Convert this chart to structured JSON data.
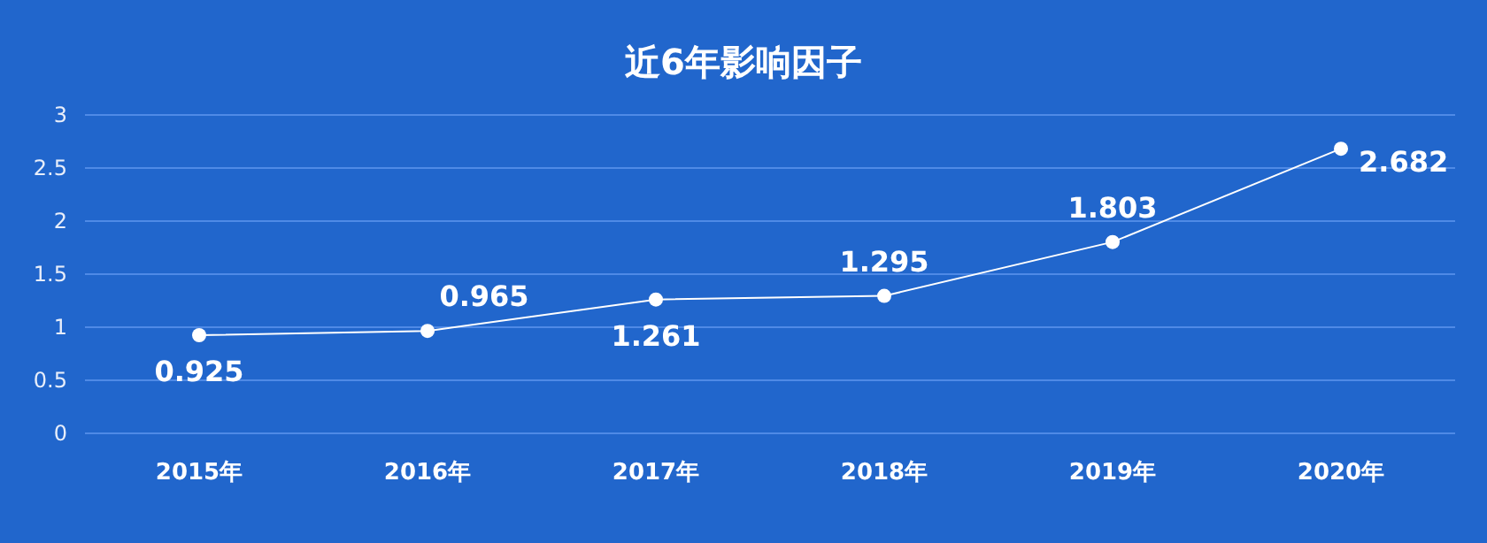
{
  "chart_data": {
    "type": "line",
    "title": "近6年影响因子",
    "categories": [
      "2015年",
      "2016年",
      "2017年",
      "2018年",
      "2019年",
      "2020年"
    ],
    "series": [
      {
        "color": "#ffffff",
        "values": [
          0.925,
          0.965,
          1.261,
          1.295,
          1.803,
          2.682
        ]
      }
    ],
    "ylim": [
      0,
      3
    ],
    "yticks": [
      0,
      0.5,
      1,
      1.5,
      2,
      2.5,
      3
    ],
    "grid": "y",
    "marker": "circle",
    "data_labels": true
  }
}
